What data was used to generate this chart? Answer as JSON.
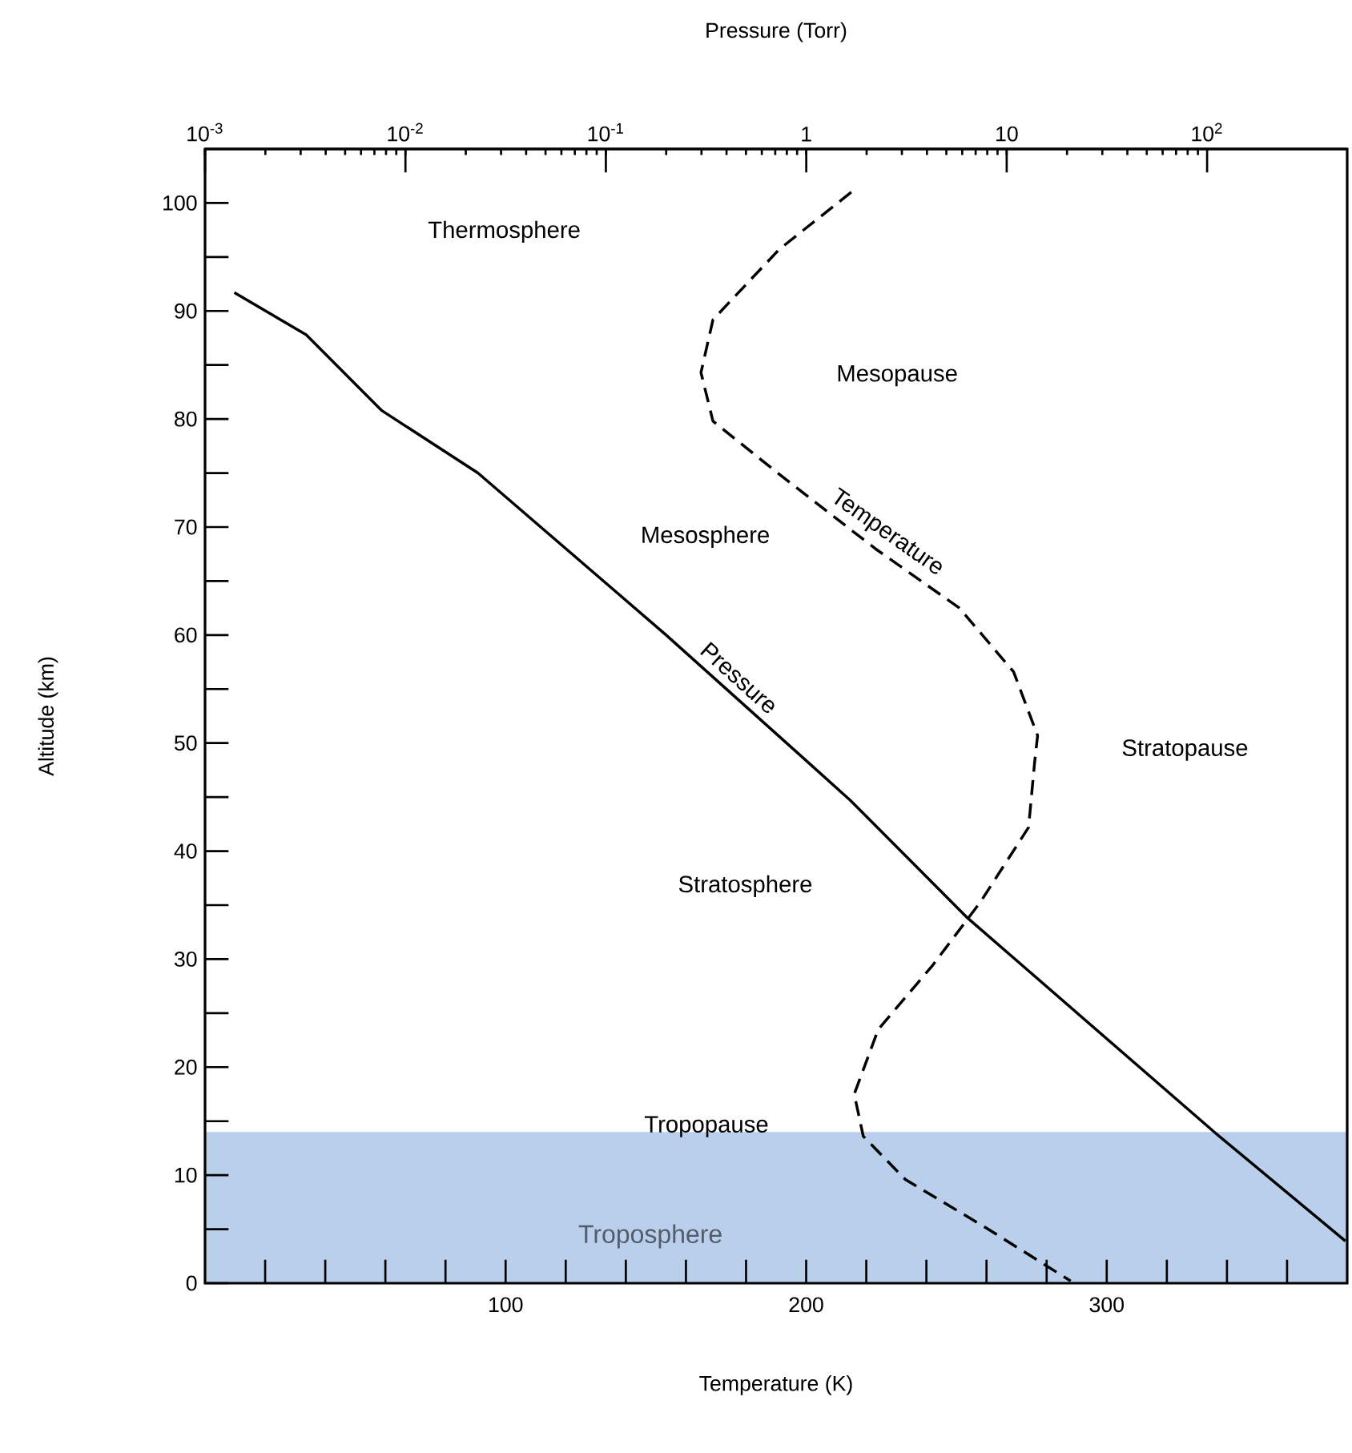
{
  "chart_data": {
    "type": "line",
    "xlabel": "Temperature (K)",
    "ylabel": "Altitude (km)",
    "x2label": "Pressure (Torr)",
    "xlim": [
      0,
      380
    ],
    "xticks": [
      {
        "value": 20,
        "label": null
      },
      {
        "value": 40,
        "label": null
      },
      {
        "value": 60,
        "label": null
      },
      {
        "value": 80,
        "label": null
      },
      {
        "value": 100,
        "label": "100"
      },
      {
        "value": 120,
        "label": null
      },
      {
        "value": 140,
        "label": null
      },
      {
        "value": 160,
        "label": null
      },
      {
        "value": 180,
        "label": null
      },
      {
        "value": 200,
        "label": "200"
      },
      {
        "value": 220,
        "label": null
      },
      {
        "value": 240,
        "label": null
      },
      {
        "value": 260,
        "label": null
      },
      {
        "value": 280,
        "label": null
      },
      {
        "value": 300,
        "label": "300"
      },
      {
        "value": 320,
        "label": null
      },
      {
        "value": 340,
        "label": null
      },
      {
        "value": 360,
        "label": null
      }
    ],
    "x2lim": [
      0.001,
      500
    ],
    "x2ticks": [
      {
        "value": 0.001,
        "label": "10$^{-3}$"
      },
      {
        "value": 0.01,
        "label": "10$^{-2}$"
      },
      {
        "value": 0.1,
        "label": "10$^{-1}$"
      },
      1,
      10,
      {
        "value": 100,
        "label": "10$^{2}$"
      }
    ],
    "log": "x2",
    "ylim": [
      0,
      105
    ],
    "yticks": [
      0,
      {
        "value": 5,
        "label": null
      },
      10,
      {
        "value": 15,
        "label": null
      },
      20,
      {
        "value": 25,
        "label": null
      },
      30,
      {
        "value": 35,
        "label": null
      },
      40,
      {
        "value": 45,
        "label": null
      },
      50,
      {
        "value": 55,
        "label": null
      },
      60,
      {
        "value": 65,
        "label": null
      },
      70,
      {
        "value": 75,
        "label": null
      },
      80,
      {
        "value": 85,
        "label": null
      },
      90,
      {
        "value": 95,
        "label": null
      },
      100
    ],
    "series": [
      {
        "name": "Temperature",
        "color": "#000000",
        "line_style": "dashed",
        "x": [
          215,
          191,
          169,
          165,
          169,
          191,
          223,
          251,
          269,
          277,
          276,
          274,
          258,
          242,
          224,
          216,
          219,
          233,
          260,
          288
        ],
        "values": [
          101,
          95.7,
          89.2,
          84.3,
          79.8,
          74.9,
          68,
          62.5,
          56.6,
          50.7,
          48.2,
          42.2,
          35.3,
          29.4,
          23.5,
          17.5,
          13.6,
          9.6,
          5.1,
          0.2
        ]
      },
      {
        "name": "Pressure",
        "color": "#000000",
        "line_style": "solid",
        "axis": "x2",
        "x": [
          0.0014,
          0.0032,
          0.0076,
          0.023,
          0.2,
          1.66,
          6.3,
          110,
          490
        ],
        "values": [
          91.7,
          87.8,
          80.8,
          75,
          60,
          44.7,
          33.9,
          13.9,
          3.9
        ]
      }
    ],
    "bands": [
      {
        "axis": "y",
        "from": 0,
        "to": 14,
        "label": "Troposphere",
        "color": "#b9cfec"
      }
    ],
    "annotations": [
      "Thermosphere",
      "Mesopause",
      "Mesosphere",
      "Stratopause",
      "Stratosphere",
      "Tropopause"
    ]
  }
}
